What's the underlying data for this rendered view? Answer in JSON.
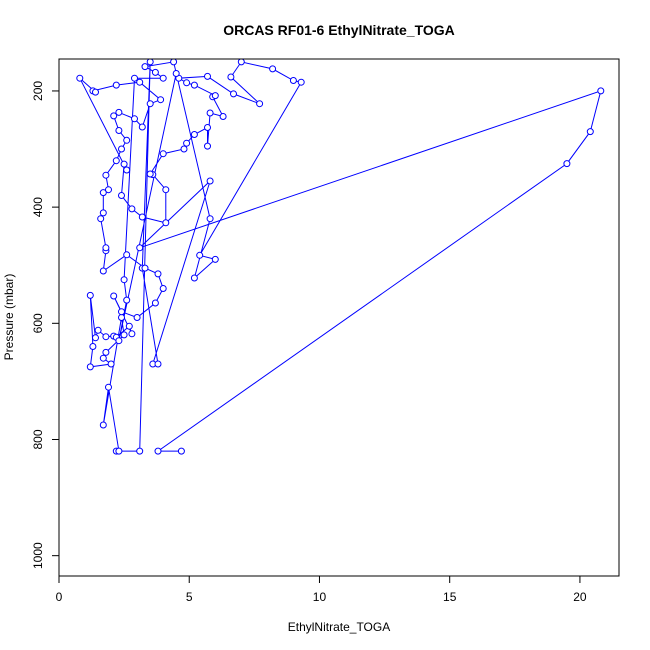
{
  "chart_data": {
    "type": "scatter",
    "title": "ORCAS RF01-6 EthylNitrate_TOGA",
    "xlabel": "EthylNitrate_TOGA",
    "ylabel": "Pressure (mbar)",
    "xlim": [
      0,
      21.5
    ],
    "ylim": [
      1035,
      145
    ],
    "y_reversed": true,
    "x_ticks": [
      0,
      5,
      10,
      15,
      20
    ],
    "y_ticks": [
      200,
      400,
      600,
      800,
      1000
    ],
    "grid": false,
    "color": "#0000ff",
    "series": [
      {
        "points": [
          [
            4.7,
            820
          ],
          [
            3.8,
            820
          ],
          [
            19.5,
            325
          ],
          [
            20.4,
            270
          ],
          [
            20.8,
            200
          ],
          [
            3.1,
            470
          ],
          [
            5.8,
            355
          ],
          [
            3.6,
            670
          ],
          [
            3.8,
            670
          ],
          [
            3.2,
            505
          ],
          [
            3.5,
            150
          ],
          [
            3.1,
            820
          ],
          [
            2.2,
            820
          ],
          [
            2.3,
            820
          ],
          [
            1.9,
            710
          ],
          [
            1.7,
            775
          ],
          [
            2.4,
            590
          ],
          [
            2.5,
            620
          ],
          [
            1.8,
            650
          ],
          [
            1.7,
            660
          ],
          [
            2.0,
            670
          ],
          [
            1.2,
            675
          ],
          [
            1.3,
            640
          ],
          [
            1.2,
            552
          ],
          [
            1.4,
            625
          ],
          [
            1.5,
            612
          ],
          [
            1.8,
            623
          ],
          [
            2.1,
            622
          ],
          [
            2.2,
            624
          ],
          [
            2.7,
            605
          ],
          [
            2.8,
            618
          ],
          [
            2.1,
            553
          ],
          [
            2.4,
            580
          ],
          [
            3.0,
            590
          ],
          [
            3.7,
            565
          ],
          [
            4.0,
            540
          ],
          [
            3.8,
            515
          ],
          [
            3.3,
            505
          ],
          [
            2.6,
            482
          ],
          [
            1.7,
            510
          ],
          [
            1.8,
            475
          ],
          [
            1.8,
            470
          ],
          [
            1.6,
            420
          ],
          [
            1.7,
            410
          ],
          [
            1.7,
            375
          ],
          [
            1.9,
            370
          ],
          [
            1.8,
            345
          ],
          [
            2.2,
            320
          ],
          [
            2.4,
            300
          ],
          [
            2.6,
            285
          ],
          [
            2.3,
            268
          ],
          [
            2.1,
            243
          ],
          [
            2.3,
            237
          ],
          [
            2.9,
            248
          ],
          [
            3.2,
            262
          ],
          [
            3.5,
            222
          ],
          [
            3.9,
            215
          ],
          [
            3.1,
            185
          ],
          [
            2.2,
            190
          ],
          [
            1.3,
            200
          ],
          [
            1.4,
            202
          ],
          [
            0.8,
            178
          ],
          [
            2.6,
            336
          ],
          [
            2.5,
            326
          ],
          [
            2.4,
            380
          ],
          [
            2.8,
            403
          ],
          [
            3.2,
            417
          ],
          [
            4.1,
            427
          ],
          [
            4.1,
            370
          ],
          [
            3.6,
            344
          ],
          [
            3.5,
            343
          ],
          [
            4.0,
            308
          ],
          [
            4.8,
            300
          ],
          [
            4.9,
            290
          ],
          [
            5.2,
            275
          ],
          [
            5.7,
            263
          ],
          [
            5.7,
            295
          ],
          [
            5.8,
            238
          ],
          [
            6.3,
            244
          ],
          [
            5.9,
            210
          ],
          [
            6.0,
            208
          ],
          [
            5.2,
            190
          ],
          [
            4.9,
            186
          ],
          [
            4.6,
            178
          ],
          [
            5.7,
            175
          ],
          [
            6.7,
            205
          ],
          [
            7.7,
            222
          ],
          [
            6.6,
            176
          ],
          [
            7.0,
            150
          ],
          [
            8.2,
            162
          ],
          [
            9.0,
            182
          ],
          [
            9.3,
            185
          ],
          [
            5.4,
            483
          ],
          [
            6.0,
            490
          ],
          [
            5.2,
            522
          ],
          [
            5.8,
            420
          ],
          [
            4.4,
            150
          ],
          [
            3.3,
            158
          ],
          [
            3.7,
            168
          ],
          [
            4.0,
            178
          ],
          [
            2.9,
            178
          ],
          [
            2.5,
            525
          ],
          [
            2.6,
            560
          ],
          [
            2.3,
            630
          ],
          [
            4.5,
            170
          ]
        ]
      }
    ]
  }
}
